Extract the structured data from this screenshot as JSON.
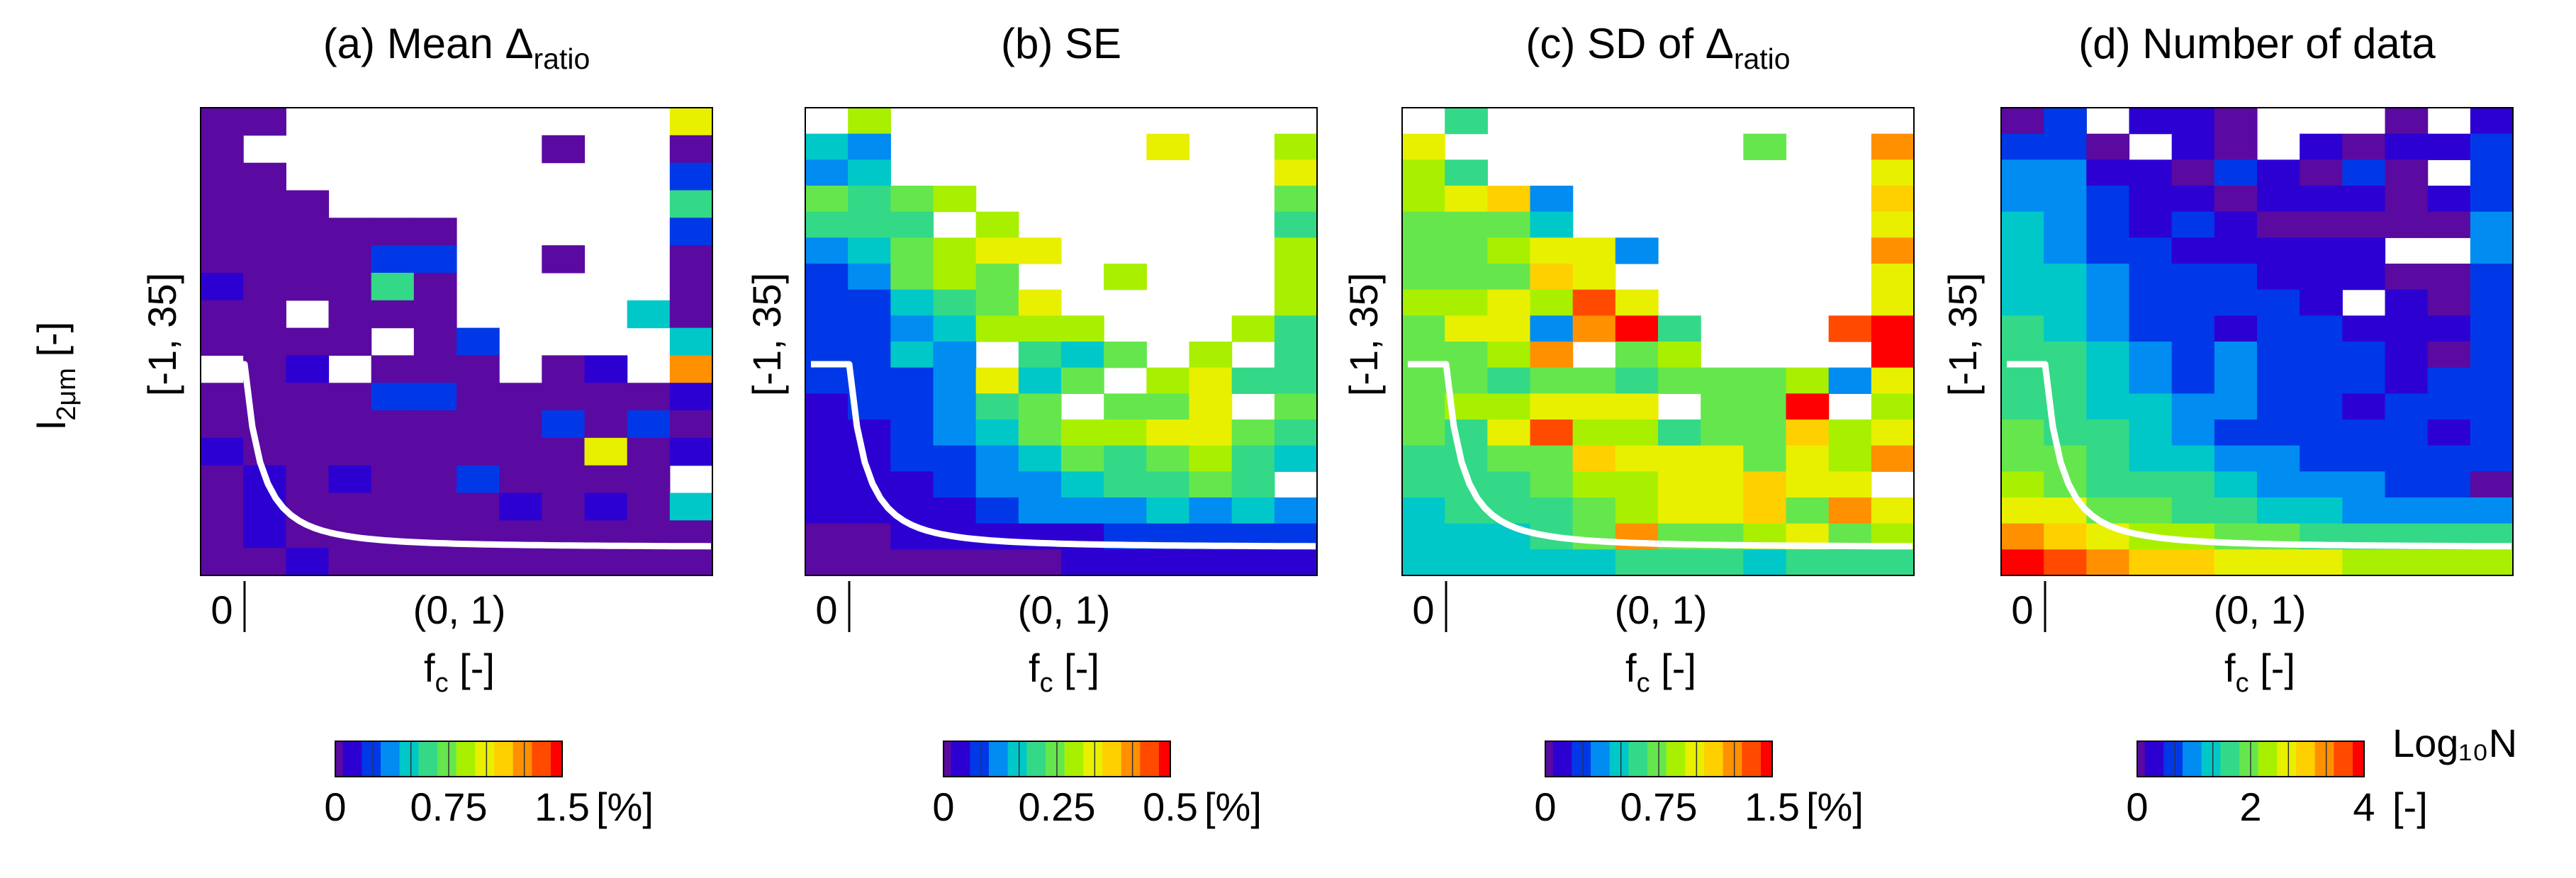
{
  "figure": {
    "shared_ylabel_main": "l",
    "shared_ylabel_sub": "2μm",
    "shared_ylabel_suffix": " [-]"
  },
  "colormap": [
    "#5a0aa0",
    "#2d00d2",
    "#0038e8",
    "#008cf0",
    "#00c8c8",
    "#33d987",
    "#66e64d",
    "#a8f000",
    "#e8f000",
    "#ffd000",
    "#ff9000",
    "#ff4a00",
    "#ff0000"
  ],
  "chart_data": [
    {
      "type": "heatmap",
      "panel": "a",
      "title_main": "(a) Mean Δ",
      "title_sub": "ratio",
      "ylabel": "[-1, 35]",
      "xlabel_main": "f",
      "xlabel_sub": "c",
      "xlabel_suffix": " [-]",
      "xtick_left": "0",
      "xtick_mid": "(0, 1)",
      "vmin": 0,
      "vmax": 1.5,
      "colorbar": {
        "ticks": [
          {
            "value": 0,
            "label": "0"
          },
          {
            "value": 0.75,
            "label": "0.75"
          },
          {
            "value": 1.5,
            "label": "1.5"
          }
        ],
        "unit": "[%]",
        "unit2": ""
      },
      "grid": [
        [
          0.03,
          0.03,
          null,
          null,
          null,
          null,
          null,
          null,
          null,
          null,
          null,
          1.0
        ],
        [
          0.03,
          null,
          null,
          null,
          null,
          null,
          null,
          null,
          0.03,
          null,
          null,
          0.03
        ],
        [
          0.03,
          0.03,
          null,
          null,
          null,
          null,
          null,
          null,
          null,
          null,
          null,
          0.25
        ],
        [
          0.03,
          0.03,
          0.03,
          null,
          null,
          null,
          null,
          null,
          null,
          null,
          null,
          0.6
        ],
        [
          0.03,
          0.03,
          0.03,
          0.03,
          0.03,
          0.03,
          null,
          null,
          null,
          null,
          null,
          0.3
        ],
        [
          0.03,
          0.03,
          0.03,
          0.03,
          0.3,
          0.3,
          null,
          null,
          0.03,
          null,
          null,
          0.03
        ],
        [
          0.08,
          0.03,
          0.03,
          0.03,
          0.65,
          0.03,
          null,
          null,
          null,
          null,
          null,
          0.03
        ],
        [
          0.03,
          0.03,
          null,
          0.03,
          0.03,
          0.03,
          null,
          null,
          null,
          null,
          0.55,
          0.03
        ],
        [
          0.03,
          0.03,
          0.03,
          0.03,
          null,
          0.03,
          0.3,
          null,
          null,
          null,
          null,
          0.45
        ],
        [
          null,
          0.03,
          0.08,
          null,
          0.03,
          0.03,
          0.03,
          null,
          0.03,
          0.08,
          null,
          1.25
        ],
        [
          0.03,
          0.03,
          0.03,
          0.03,
          0.2,
          0.2,
          0.03,
          0.03,
          0.03,
          0.03,
          0.03,
          0.08
        ],
        [
          0.03,
          0.03,
          0.03,
          0.03,
          0.03,
          0.03,
          0.03,
          0.03,
          0.2,
          0.03,
          0.3,
          0.03
        ],
        [
          0.08,
          0.03,
          0.03,
          0.03,
          0.03,
          0.03,
          0.03,
          0.03,
          0.03,
          0.95,
          0.03,
          0.08
        ],
        [
          0.03,
          0.08,
          0.03,
          0.08,
          0.03,
          0.03,
          0.2,
          0.03,
          0.03,
          0.03,
          0.03,
          null
        ],
        [
          0.03,
          0.08,
          0.03,
          0.03,
          0.03,
          0.03,
          0.03,
          0.15,
          0.03,
          0.08,
          0.03,
          0.55
        ],
        [
          0.03,
          0.15,
          0.03,
          0.03,
          0.03,
          0.03,
          0.03,
          0.03,
          0.03,
          0.03,
          0.03,
          0.03
        ],
        [
          0.03,
          0.03,
          0.08,
          0.03,
          0.03,
          0.03,
          0.03,
          0.03,
          0.03,
          0.03,
          0.03,
          0.03
        ]
      ]
    },
    {
      "type": "heatmap",
      "panel": "b",
      "title_main": "(b) SE",
      "title_sub": "",
      "ylabel": "[-1, 35]",
      "xlabel_main": "f",
      "xlabel_sub": "c",
      "xlabel_suffix": " [-]",
      "xtick_left": "0",
      "xtick_mid": "(0, 1)",
      "vmin": 0,
      "vmax": 0.5,
      "colorbar": {
        "ticks": [
          {
            "value": 0,
            "label": "0"
          },
          {
            "value": 0.25,
            "label": "0.25"
          },
          {
            "value": 0.5,
            "label": "0.5"
          }
        ],
        "unit": "[%]",
        "unit2": ""
      },
      "grid": [
        [
          null,
          0.3,
          null,
          null,
          null,
          null,
          null,
          null,
          null,
          null,
          null,
          null
        ],
        [
          0.17,
          0.13,
          null,
          null,
          null,
          null,
          null,
          null,
          0.33,
          null,
          null,
          0.28
        ],
        [
          0.14,
          0.15,
          null,
          null,
          null,
          null,
          null,
          null,
          null,
          null,
          null,
          0.32
        ],
        [
          0.24,
          0.2,
          0.26,
          0.3,
          null,
          null,
          null,
          null,
          null,
          null,
          null,
          0.24
        ],
        [
          0.2,
          0.2,
          0.22,
          null,
          0.28,
          null,
          null,
          null,
          null,
          null,
          null,
          0.2
        ],
        [
          0.12,
          0.15,
          0.24,
          0.28,
          0.33,
          0.33,
          null,
          null,
          null,
          null,
          null,
          0.28
        ],
        [
          0.1,
          0.11,
          0.25,
          0.28,
          0.26,
          null,
          null,
          0.28,
          null,
          null,
          null,
          0.3
        ],
        [
          0.08,
          0.1,
          0.16,
          0.22,
          0.26,
          0.32,
          null,
          null,
          null,
          null,
          null,
          0.28
        ],
        [
          0.07,
          0.1,
          0.12,
          0.16,
          0.3,
          0.3,
          0.3,
          null,
          null,
          null,
          0.28,
          0.2
        ],
        [
          0.07,
          0.08,
          0.15,
          0.13,
          null,
          0.2,
          0.17,
          0.25,
          null,
          0.3,
          null,
          0.22
        ],
        [
          0.07,
          0.08,
          0.1,
          0.12,
          0.32,
          0.17,
          0.25,
          null,
          0.3,
          0.32,
          0.2,
          0.2
        ],
        [
          0.05,
          0.07,
          0.09,
          0.12,
          0.2,
          0.25,
          null,
          0.27,
          0.25,
          0.32,
          null,
          0.25
        ],
        [
          0.05,
          0.06,
          0.08,
          0.12,
          0.15,
          0.24,
          0.3,
          0.3,
          0.32,
          0.32,
          0.25,
          0.2
        ],
        [
          0.05,
          0.05,
          0.07,
          0.1,
          0.12,
          0.18,
          0.24,
          0.2,
          0.27,
          0.3,
          0.2,
          0.16
        ],
        [
          0.04,
          0.05,
          0.06,
          0.09,
          0.12,
          0.14,
          0.15,
          0.22,
          0.2,
          0.25,
          0.2,
          null
        ],
        [
          0.03,
          0.04,
          0.05,
          0.06,
          0.09,
          0.11,
          0.13,
          0.14,
          0.17,
          0.12,
          0.18,
          0.14
        ],
        [
          0.02,
          0.02,
          0.03,
          0.03,
          0.05,
          0.05,
          0.06,
          0.07,
          0.07,
          0.08,
          0.1,
          0.08
        ],
        [
          0.01,
          0.01,
          0.01,
          0.02,
          0.02,
          0.02,
          0.03,
          0.03,
          0.03,
          0.04,
          0.04,
          0.04
        ]
      ]
    },
    {
      "type": "heatmap",
      "panel": "c",
      "title_main": "(c) SD of Δ",
      "title_sub": "ratio",
      "ylabel": "[-1, 35]",
      "xlabel_main": "f",
      "xlabel_sub": "c",
      "xlabel_suffix": " [-]",
      "xtick_left": "0",
      "xtick_mid": "(0, 1)",
      "vmin": 0,
      "vmax": 1.5,
      "colorbar": {
        "ticks": [
          {
            "value": 0,
            "label": "0"
          },
          {
            "value": 0.75,
            "label": "0.75"
          },
          {
            "value": 1.5,
            "label": "1.5"
          }
        ],
        "unit": "[%]",
        "unit2": ""
      },
      "grid": [
        [
          null,
          0.6,
          null,
          null,
          null,
          null,
          null,
          null,
          null,
          null,
          null,
          null
        ],
        [
          0.95,
          null,
          null,
          null,
          null,
          null,
          null,
          null,
          0.8,
          null,
          null,
          1.25
        ],
        [
          0.85,
          0.6,
          null,
          null,
          null,
          null,
          null,
          null,
          null,
          null,
          null,
          0.95
        ],
        [
          0.85,
          0.95,
          1.1,
          0.35,
          null,
          null,
          null,
          null,
          null,
          null,
          null,
          1.15
        ],
        [
          0.8,
          0.7,
          0.7,
          0.45,
          null,
          null,
          null,
          null,
          null,
          null,
          null,
          0.95
        ],
        [
          0.75,
          0.8,
          0.85,
          1.05,
          1.05,
          0.35,
          null,
          null,
          null,
          null,
          null,
          1.3
        ],
        [
          0.8,
          0.75,
          0.7,
          1.1,
          1.0,
          null,
          null,
          null,
          null,
          null,
          null,
          0.95
        ],
        [
          0.85,
          0.9,
          1.05,
          0.9,
          1.4,
          0.95,
          null,
          null,
          null,
          null,
          null,
          1.05
        ],
        [
          0.75,
          0.95,
          1.0,
          0.4,
          1.2,
          1.45,
          0.6,
          null,
          null,
          null,
          1.35,
          1.45
        ],
        [
          0.75,
          0.8,
          0.9,
          1.2,
          null,
          0.7,
          0.9,
          null,
          null,
          null,
          null,
          1.45
        ],
        [
          0.7,
          0.75,
          0.65,
          0.75,
          0.8,
          0.6,
          0.7,
          0.75,
          0.8,
          0.85,
          0.35,
          1.0
        ],
        [
          0.75,
          0.85,
          0.85,
          0.95,
          0.95,
          1.0,
          null,
          0.8,
          0.7,
          1.45,
          null,
          0.9
        ],
        [
          0.7,
          0.65,
          0.95,
          1.35,
          0.9,
          0.85,
          0.6,
          0.75,
          0.7,
          1.15,
          0.9,
          0.95
        ],
        [
          0.65,
          0.6,
          0.7,
          0.75,
          1.15,
          0.95,
          0.95,
          1.05,
          0.8,
          1.0,
          0.9,
          1.2
        ],
        [
          0.6,
          0.65,
          0.65,
          0.7,
          0.85,
          0.9,
          1.0,
          1.05,
          1.1,
          1.0,
          1.0,
          null
        ],
        [
          0.55,
          0.6,
          0.6,
          0.65,
          0.75,
          0.9,
          1.05,
          0.95,
          1.15,
          0.7,
          1.2,
          1.0
        ],
        [
          0.55,
          0.55,
          0.55,
          0.6,
          0.7,
          1.3,
          0.75,
          0.8,
          0.9,
          1.0,
          0.8,
          0.9
        ],
        [
          0.55,
          0.55,
          0.55,
          0.55,
          0.55,
          0.6,
          0.65,
          0.6,
          0.55,
          0.6,
          0.6,
          0.6
        ]
      ]
    },
    {
      "type": "heatmap",
      "panel": "d",
      "title_main": "(d) Number of data",
      "title_sub": "",
      "ylabel": "[-1, 35]",
      "xlabel_main": "f",
      "xlabel_sub": "c",
      "xlabel_suffix": " [-]",
      "xtick_left": "0",
      "xtick_mid": "(0, 1)",
      "vmin": 0,
      "vmax": 4,
      "colorbar": {
        "ticks": [
          {
            "value": 0,
            "label": "0"
          },
          {
            "value": 2,
            "label": "2"
          },
          {
            "value": 4,
            "label": "4"
          }
        ],
        "unit": "Log₁₀N",
        "unit2": "[-]"
      },
      "grid": [
        [
          0.1,
          0.8,
          null,
          0.3,
          0.3,
          0.1,
          null,
          null,
          null,
          0.1,
          null,
          0.4
        ],
        [
          0.8,
          0.5,
          0.1,
          null,
          0.3,
          0.1,
          null,
          0.3,
          0.1,
          0.4,
          0.3,
          0.6
        ],
        [
          1.1,
          1.0,
          0.4,
          0.3,
          0.1,
          0.6,
          0.3,
          0.1,
          0.5,
          0.1,
          null,
          0.6
        ],
        [
          1.0,
          0.9,
          0.7,
          0.3,
          0.3,
          0.1,
          0.4,
          0.3,
          0.3,
          0.1,
          0.3,
          0.6
        ],
        [
          1.2,
          1.0,
          0.7,
          0.2,
          0.6,
          0.2,
          0.1,
          0.1,
          0.1,
          0.1,
          0.1,
          1.0
        ],
        [
          1.3,
          1.1,
          0.8,
          0.6,
          0.3,
          0.4,
          0.3,
          0.3,
          0.4,
          null,
          null,
          1.0
        ],
        [
          1.3,
          1.2,
          0.9,
          0.6,
          0.6,
          0.6,
          0.4,
          0.4,
          0.3,
          0.1,
          0.1,
          0.6
        ],
        [
          1.4,
          1.3,
          1.0,
          0.7,
          0.7,
          0.7,
          0.5,
          0.3,
          null,
          0.3,
          0.1,
          0.8
        ],
        [
          1.5,
          1.4,
          1.1,
          0.7,
          0.7,
          0.4,
          0.5,
          0.7,
          0.4,
          0.3,
          0.3,
          0.7
        ],
        [
          1.6,
          1.5,
          1.2,
          1.0,
          0.5,
          0.9,
          0.7,
          0.5,
          0.6,
          0.3,
          0.1,
          0.6
        ],
        [
          1.7,
          1.6,
          1.4,
          1.0,
          0.6,
          1.1,
          0.8,
          0.6,
          0.5,
          0.2,
          0.6,
          0.8
        ],
        [
          1.8,
          1.7,
          1.4,
          1.2,
          1.0,
          0.9,
          0.7,
          0.5,
          0.4,
          0.5,
          0.5,
          0.5
        ],
        [
          1.9,
          1.8,
          1.5,
          1.2,
          1.1,
          0.8,
          0.7,
          0.6,
          0.5,
          0.5,
          0.4,
          0.5
        ],
        [
          2.1,
          1.9,
          1.6,
          1.4,
          1.3,
          1.1,
          1.0,
          0.8,
          0.8,
          0.7,
          0.5,
          0.6
        ],
        [
          2.4,
          2.1,
          1.8,
          1.6,
          1.5,
          1.2,
          1.1,
          0.9,
          0.9,
          0.8,
          0.7,
          0.1
        ],
        [
          2.8,
          2.5,
          2.1,
          1.9,
          1.7,
          1.5,
          1.4,
          1.2,
          1.1,
          1.0,
          0.9,
          1.0
        ],
        [
          3.3,
          3.0,
          2.6,
          2.3,
          2.2,
          2.0,
          1.9,
          1.8,
          1.7,
          1.6,
          1.5,
          1.6
        ],
        [
          4.0,
          3.8,
          3.4,
          3.1,
          2.9,
          2.8,
          2.6,
          2.5,
          2.4,
          2.3,
          2.2,
          2.2
        ]
      ]
    }
  ]
}
